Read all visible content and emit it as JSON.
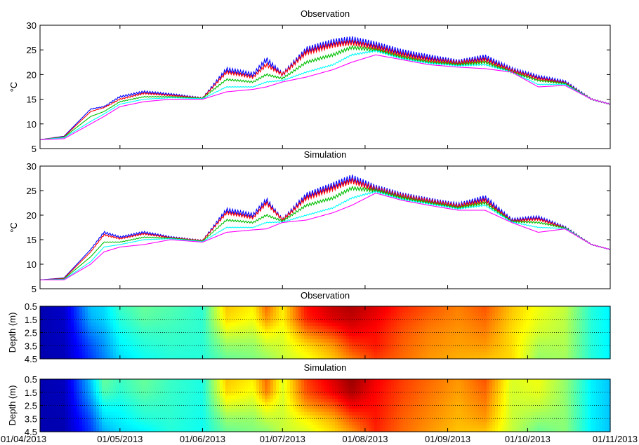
{
  "chart_data": [
    {
      "type": "line",
      "title": "Observation",
      "ylabel": "°C",
      "ylim": [
        5,
        30
      ],
      "yticks": [
        "5",
        "10",
        "15",
        "20",
        "25",
        "30"
      ],
      "xlim": [
        "01/04/2013",
        "01/11/2013"
      ],
      "grid": false,
      "series": [
        {
          "color": "#0000ff",
          "x": [
            "01/04/2013",
            "10/04/2013",
            "20/04/2013",
            "25/04/2013",
            "01/05/2013",
            "10/05/2013",
            "20/05/2013",
            "01/06/2013",
            "10/06/2013",
            "20/06/2013",
            "25/06/2013",
            "01/07/2013",
            "10/07/2013",
            "20/07/2013",
            "27/07/2013",
            "05/08/2013",
            "15/08/2013",
            "25/08/2013",
            "05/09/2013",
            "15/09/2013",
            "25/09/2013",
            "05/10/2013",
            "15/10/2013",
            "25/10/2013",
            "01/11/2013"
          ],
          "y": [
            6.8,
            7.5,
            13.0,
            13.5,
            15.5,
            16.5,
            16.0,
            15.2,
            21.0,
            20.0,
            23.0,
            20.0,
            25.0,
            26.5,
            27.0,
            26.0,
            24.5,
            23.5,
            22.5,
            23.5,
            21.0,
            19.5,
            18.5,
            15.0,
            14.0
          ]
        },
        {
          "color": "#ff0000",
          "x": [
            "01/04/2013",
            "10/04/2013",
            "20/04/2013",
            "25/04/2013",
            "01/05/2013",
            "10/05/2013",
            "20/05/2013",
            "01/06/2013",
            "10/06/2013",
            "20/06/2013",
            "25/06/2013",
            "01/07/2013",
            "10/07/2013",
            "20/07/2013",
            "27/07/2013",
            "05/08/2013",
            "15/08/2013",
            "25/08/2013",
            "05/09/2013",
            "15/09/2013",
            "25/09/2013",
            "05/10/2013",
            "15/10/2013",
            "25/10/2013",
            "01/11/2013"
          ],
          "y": [
            6.8,
            7.4,
            12.5,
            13.3,
            15.0,
            16.2,
            15.8,
            15.2,
            20.5,
            19.5,
            22.0,
            20.0,
            24.5,
            26.0,
            26.5,
            25.5,
            24.0,
            23.0,
            22.3,
            23.0,
            20.8,
            19.2,
            18.3,
            15.0,
            14.0
          ]
        },
        {
          "color": "#00c000",
          "x": [
            "01/04/2013",
            "10/04/2013",
            "20/04/2013",
            "25/04/2013",
            "01/05/2013",
            "10/05/2013",
            "20/05/2013",
            "01/06/2013",
            "10/06/2013",
            "20/06/2013",
            "25/06/2013",
            "01/07/2013",
            "10/07/2013",
            "20/07/2013",
            "27/07/2013",
            "05/08/2013",
            "15/08/2013",
            "25/08/2013",
            "05/09/2013",
            "15/09/2013",
            "25/09/2013",
            "05/10/2013",
            "15/10/2013",
            "25/10/2013",
            "01/11/2013"
          ],
          "y": [
            6.8,
            7.3,
            11.5,
            12.5,
            14.5,
            15.5,
            15.5,
            15.2,
            19.0,
            18.5,
            20.0,
            19.2,
            22.5,
            24.0,
            25.5,
            25.0,
            23.5,
            22.5,
            22.0,
            22.5,
            20.5,
            18.8,
            18.2,
            15.0,
            14.0
          ]
        },
        {
          "color": "#00ffff",
          "x": [
            "01/04/2013",
            "10/04/2013",
            "20/04/2013",
            "25/04/2013",
            "01/05/2013",
            "10/05/2013",
            "20/05/2013",
            "01/06/2013",
            "10/06/2013",
            "20/06/2013",
            "25/06/2013",
            "01/07/2013",
            "10/07/2013",
            "20/07/2013",
            "27/07/2013",
            "05/08/2013",
            "15/08/2013",
            "25/08/2013",
            "05/09/2013",
            "15/09/2013",
            "25/09/2013",
            "05/10/2013",
            "15/10/2013",
            "25/10/2013",
            "01/11/2013"
          ],
          "y": [
            6.8,
            7.2,
            10.5,
            12.0,
            14.0,
            15.0,
            15.3,
            15.1,
            17.5,
            17.5,
            18.5,
            18.8,
            20.5,
            22.0,
            24.0,
            24.8,
            23.2,
            22.3,
            21.8,
            22.0,
            20.5,
            18.0,
            18.0,
            15.0,
            14.0
          ]
        },
        {
          "color": "#ff00ff",
          "x": [
            "01/04/2013",
            "10/04/2013",
            "20/04/2013",
            "25/04/2013",
            "01/05/2013",
            "10/05/2013",
            "20/05/2013",
            "01/06/2013",
            "10/06/2013",
            "20/06/2013",
            "25/06/2013",
            "01/07/2013",
            "10/07/2013",
            "20/07/2013",
            "27/07/2013",
            "05/08/2013",
            "15/08/2013",
            "25/08/2013",
            "05/09/2013",
            "15/09/2013",
            "25/09/2013",
            "05/10/2013",
            "15/10/2013",
            "25/10/2013",
            "01/11/2013"
          ],
          "y": [
            6.8,
            7.0,
            10.0,
            11.5,
            13.5,
            14.5,
            15.0,
            15.0,
            16.5,
            17.0,
            17.5,
            18.5,
            19.5,
            21.0,
            22.5,
            24.0,
            23.0,
            22.0,
            21.5,
            21.2,
            20.5,
            17.5,
            17.8,
            15.0,
            14.0
          ]
        }
      ]
    },
    {
      "type": "line",
      "title": "Simulation",
      "ylabel": "°C",
      "ylim": [
        5,
        30
      ],
      "yticks": [
        "5",
        "10",
        "15",
        "20",
        "25",
        "30"
      ],
      "xlim": [
        "01/04/2013",
        "01/11/2013"
      ],
      "grid": false,
      "series": [
        {
          "color": "#0000ff",
          "x": [
            "01/04/2013",
            "10/04/2013",
            "20/04/2013",
            "25/04/2013",
            "01/05/2013",
            "10/05/2013",
            "20/05/2013",
            "01/06/2013",
            "10/06/2013",
            "20/06/2013",
            "25/06/2013",
            "01/07/2013",
            "10/07/2013",
            "20/07/2013",
            "27/07/2013",
            "05/08/2013",
            "15/08/2013",
            "25/08/2013",
            "05/09/2013",
            "15/09/2013",
            "25/09/2013",
            "05/10/2013",
            "15/10/2013",
            "25/10/2013",
            "01/11/2013"
          ],
          "y": [
            6.8,
            7.2,
            13.0,
            16.5,
            15.5,
            16.5,
            15.5,
            14.8,
            21.0,
            20.0,
            23.0,
            19.0,
            24.0,
            26.0,
            27.5,
            25.5,
            24.0,
            23.0,
            22.0,
            23.5,
            19.0,
            19.5,
            17.5,
            14.0,
            13.0
          ]
        },
        {
          "color": "#ff0000",
          "x": [
            "01/04/2013",
            "10/04/2013",
            "20/04/2013",
            "25/04/2013",
            "01/05/2013",
            "10/05/2013",
            "20/05/2013",
            "01/06/2013",
            "10/06/2013",
            "20/06/2013",
            "25/06/2013",
            "01/07/2013",
            "10/07/2013",
            "20/07/2013",
            "27/07/2013",
            "05/08/2013",
            "15/08/2013",
            "25/08/2013",
            "05/09/2013",
            "15/09/2013",
            "25/09/2013",
            "05/10/2013",
            "15/10/2013",
            "25/10/2013",
            "01/11/2013"
          ],
          "y": [
            6.8,
            7.1,
            12.5,
            16.0,
            15.2,
            16.2,
            15.4,
            14.8,
            20.5,
            19.5,
            22.5,
            19.0,
            23.5,
            25.5,
            27.0,
            25.2,
            23.8,
            22.8,
            21.8,
            23.0,
            18.8,
            19.2,
            17.4,
            14.0,
            13.0
          ]
        },
        {
          "color": "#00c000",
          "x": [
            "01/04/2013",
            "10/04/2013",
            "20/04/2013",
            "25/04/2013",
            "01/05/2013",
            "10/05/2013",
            "20/05/2013",
            "01/06/2013",
            "10/06/2013",
            "20/06/2013",
            "25/06/2013",
            "01/07/2013",
            "10/07/2013",
            "20/07/2013",
            "27/07/2013",
            "05/08/2013",
            "15/08/2013",
            "25/08/2013",
            "05/09/2013",
            "15/09/2013",
            "25/09/2013",
            "05/10/2013",
            "15/10/2013",
            "25/10/2013",
            "01/11/2013"
          ],
          "y": [
            6.8,
            7.0,
            11.5,
            14.5,
            14.5,
            15.5,
            15.3,
            14.7,
            19.0,
            18.5,
            20.0,
            18.8,
            22.0,
            23.5,
            25.5,
            25.0,
            23.5,
            22.5,
            21.5,
            22.5,
            18.7,
            18.5,
            17.4,
            14.0,
            13.0
          ]
        },
        {
          "color": "#00ffff",
          "x": [
            "01/04/2013",
            "10/04/2013",
            "20/04/2013",
            "25/04/2013",
            "01/05/2013",
            "10/05/2013",
            "20/05/2013",
            "01/06/2013",
            "10/06/2013",
            "20/06/2013",
            "25/06/2013",
            "01/07/2013",
            "10/07/2013",
            "20/07/2013",
            "27/07/2013",
            "05/08/2013",
            "15/08/2013",
            "25/08/2013",
            "05/09/2013",
            "15/09/2013",
            "25/09/2013",
            "05/10/2013",
            "15/10/2013",
            "25/10/2013",
            "01/11/2013"
          ],
          "y": [
            6.8,
            6.9,
            10.5,
            13.5,
            14.0,
            15.0,
            15.2,
            14.6,
            17.5,
            17.5,
            18.5,
            18.6,
            20.0,
            21.5,
            23.5,
            24.8,
            23.2,
            22.3,
            21.3,
            22.0,
            18.6,
            17.5,
            17.3,
            14.0,
            13.0
          ]
        },
        {
          "color": "#ff00ff",
          "x": [
            "01/04/2013",
            "10/04/2013",
            "20/04/2013",
            "25/04/2013",
            "01/05/2013",
            "10/05/2013",
            "20/05/2013",
            "01/06/2013",
            "10/06/2013",
            "20/06/2013",
            "25/06/2013",
            "01/07/2013",
            "10/07/2013",
            "20/07/2013",
            "27/07/2013",
            "05/08/2013",
            "15/08/2013",
            "25/08/2013",
            "05/09/2013",
            "15/09/2013",
            "25/09/2013",
            "05/10/2013",
            "15/10/2013",
            "25/10/2013",
            "01/11/2013"
          ],
          "y": [
            6.8,
            6.8,
            10.0,
            12.5,
            13.5,
            14.0,
            15.0,
            14.5,
            16.5,
            17.0,
            17.2,
            18.5,
            19.0,
            20.5,
            22.0,
            24.5,
            23.0,
            22.0,
            21.0,
            21.0,
            18.5,
            16.5,
            17.2,
            14.0,
            13.0
          ]
        }
      ]
    },
    {
      "type": "heatmap",
      "title": "Observation",
      "ylabel": "Depth (m)",
      "ylim": [
        4.5,
        0.5
      ],
      "yticks": [
        "0.5",
        "1.5",
        "2.5",
        "3.5",
        "4.5"
      ],
      "grid": "dotted horizontal lines at each depth tick",
      "colorscale": [
        "#00008f",
        "#0000ff",
        "#0080ff",
        "#00ffff",
        "#80ff80",
        "#ffff00",
        "#ff8000",
        "#ff0000",
        "#800000"
      ],
      "value_range": [
        6,
        28
      ],
      "x": [
        "01/04/2013",
        "10/04/2013",
        "20/04/2013",
        "25/04/2013",
        "01/05/2013",
        "10/05/2013",
        "20/05/2013",
        "01/06/2013",
        "10/06/2013",
        "20/06/2013",
        "25/06/2013",
        "01/07/2013",
        "10/07/2013",
        "20/07/2013",
        "27/07/2013",
        "05/08/2013",
        "15/08/2013",
        "25/08/2013",
        "05/09/2013",
        "15/09/2013",
        "25/09/2013",
        "05/10/2013",
        "15/10/2013",
        "25/10/2013",
        "01/11/2013"
      ],
      "depths": [
        0.5,
        1.5,
        2.5,
        3.5,
        4.5
      ],
      "values": [
        [
          6.8,
          7.5,
          13.0,
          13.5,
          15.5,
          16.5,
          16.0,
          15.2,
          21.0,
          20.0,
          23.0,
          20.0,
          25.0,
          26.5,
          27.0,
          26.0,
          24.5,
          23.5,
          22.5,
          23.5,
          21.0,
          19.5,
          18.5,
          15.0,
          14.0
        ],
        [
          6.8,
          7.4,
          12.5,
          13.3,
          15.0,
          16.2,
          15.8,
          15.2,
          20.5,
          19.5,
          22.0,
          20.0,
          24.5,
          26.0,
          26.5,
          25.5,
          24.0,
          23.0,
          22.3,
          23.0,
          20.8,
          19.2,
          18.3,
          15.0,
          14.0
        ],
        [
          6.8,
          7.3,
          11.5,
          12.5,
          14.5,
          15.5,
          15.5,
          15.2,
          19.0,
          18.5,
          20.0,
          19.2,
          22.5,
          24.0,
          25.5,
          25.0,
          23.5,
          22.5,
          22.0,
          22.5,
          20.5,
          18.8,
          18.2,
          15.0,
          14.0
        ],
        [
          6.8,
          7.2,
          10.5,
          12.0,
          14.0,
          15.0,
          15.3,
          15.1,
          17.5,
          17.5,
          18.5,
          18.8,
          20.5,
          22.0,
          24.0,
          24.8,
          23.2,
          22.3,
          21.8,
          22.0,
          20.5,
          18.0,
          18.0,
          15.0,
          14.0
        ],
        [
          6.8,
          7.0,
          10.0,
          11.5,
          13.5,
          14.5,
          15.0,
          15.0,
          16.5,
          17.0,
          17.5,
          18.5,
          19.5,
          21.0,
          22.5,
          24.0,
          23.0,
          22.0,
          21.5,
          21.2,
          20.5,
          17.5,
          17.8,
          15.0,
          14.0
        ]
      ]
    },
    {
      "type": "heatmap",
      "title": "Simulation",
      "ylabel": "Depth (m)",
      "ylim": [
        4.5,
        0.5
      ],
      "yticks": [
        "0.5",
        "1.5",
        "2.5",
        "3.5",
        "4.5"
      ],
      "grid": "dotted horizontal lines at each depth tick",
      "colorscale": [
        "#00008f",
        "#0000ff",
        "#0080ff",
        "#00ffff",
        "#80ff80",
        "#ffff00",
        "#ff8000",
        "#ff0000",
        "#800000"
      ],
      "value_range": [
        6,
        28
      ],
      "x": [
        "01/04/2013",
        "10/04/2013",
        "20/04/2013",
        "25/04/2013",
        "01/05/2013",
        "10/05/2013",
        "20/05/2013",
        "01/06/2013",
        "10/06/2013",
        "20/06/2013",
        "25/06/2013",
        "01/07/2013",
        "10/07/2013",
        "20/07/2013",
        "27/07/2013",
        "05/08/2013",
        "15/08/2013",
        "25/08/2013",
        "05/09/2013",
        "15/09/2013",
        "25/09/2013",
        "05/10/2013",
        "15/10/2013",
        "25/10/2013",
        "01/11/2013"
      ],
      "depths": [
        0.5,
        1.5,
        2.5,
        3.5,
        4.5
      ],
      "values": [
        [
          6.8,
          7.2,
          13.0,
          16.5,
          15.5,
          16.5,
          15.5,
          14.8,
          21.0,
          20.0,
          23.0,
          19.0,
          24.0,
          26.0,
          27.5,
          25.5,
          24.0,
          23.0,
          22.0,
          23.5,
          19.0,
          19.5,
          17.5,
          14.0,
          13.0
        ],
        [
          6.8,
          7.1,
          12.5,
          16.0,
          15.2,
          16.2,
          15.4,
          14.8,
          20.5,
          19.5,
          22.5,
          19.0,
          23.5,
          25.5,
          27.0,
          25.2,
          23.8,
          22.8,
          21.8,
          23.0,
          18.8,
          19.2,
          17.4,
          14.0,
          13.0
        ],
        [
          6.8,
          7.0,
          11.5,
          14.5,
          14.5,
          15.5,
          15.3,
          14.7,
          19.0,
          18.5,
          20.0,
          18.8,
          22.0,
          23.5,
          25.5,
          25.0,
          23.5,
          22.5,
          21.5,
          22.5,
          18.7,
          18.5,
          17.4,
          14.0,
          13.0
        ],
        [
          6.8,
          6.9,
          10.5,
          13.5,
          14.0,
          15.0,
          15.2,
          14.6,
          17.5,
          17.5,
          18.5,
          18.6,
          20.0,
          21.5,
          23.5,
          24.8,
          23.2,
          22.3,
          21.3,
          22.0,
          18.6,
          17.5,
          17.3,
          14.0,
          13.0
        ],
        [
          6.8,
          6.8,
          10.0,
          12.5,
          13.5,
          14.0,
          15.0,
          14.5,
          16.5,
          17.0,
          17.2,
          18.5,
          19.0,
          20.5,
          22.0,
          24.5,
          23.0,
          22.0,
          21.0,
          21.0,
          18.5,
          16.5,
          17.2,
          14.0,
          13.0
        ]
      ]
    }
  ],
  "xaxis": {
    "tick_labels": [
      "01/04/2013",
      "01/05/2013",
      "01/06/2013",
      "01/07/2013",
      "01/08/2013",
      "01/09/2013",
      "01/10/2013",
      "01/11/2013"
    ]
  }
}
